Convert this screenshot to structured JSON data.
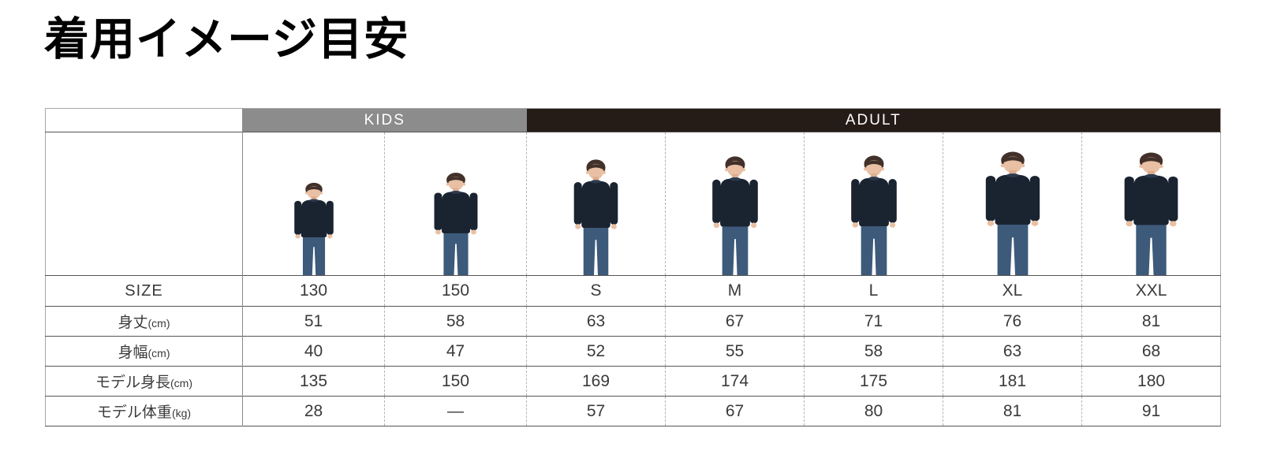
{
  "page": {
    "title": "着用イメージ目安"
  },
  "table": {
    "groups": [
      {
        "label": "KIDS",
        "span": 2
      },
      {
        "label": "ADULT",
        "span": 5
      }
    ],
    "size_row": {
      "label": "SIZE",
      "values": [
        "130",
        "150",
        "S",
        "M",
        "L",
        "XL",
        "XXL"
      ]
    },
    "spec_rows": [
      {
        "label": "身丈",
        "unit": "(cm)",
        "values": [
          "51",
          "58",
          "63",
          "67",
          "71",
          "76",
          "81"
        ]
      },
      {
        "label": "身幅",
        "unit": "(cm)",
        "values": [
          "40",
          "47",
          "52",
          "55",
          "58",
          "63",
          "68"
        ]
      },
      {
        "label": "モデル身長",
        "unit": "(cm)",
        "values": [
          "135",
          "150",
          "169",
          "174",
          "175",
          "181",
          "180"
        ]
      },
      {
        "label": "モデル体重",
        "unit": "(kg)",
        "values": [
          "28",
          "―",
          "57",
          "67",
          "80",
          "81",
          "91"
        ]
      }
    ],
    "models": [
      {
        "size": "130",
        "group": "KIDS",
        "height_cm": 135
      },
      {
        "size": "150",
        "group": "KIDS",
        "height_cm": 150
      },
      {
        "size": "S",
        "group": "ADULT",
        "height_cm": 169
      },
      {
        "size": "M",
        "group": "ADULT",
        "height_cm": 174
      },
      {
        "size": "L",
        "group": "ADULT",
        "height_cm": 175
      },
      {
        "size": "XL",
        "group": "ADULT",
        "height_cm": 181
      },
      {
        "size": "XXL",
        "group": "ADULT",
        "height_cm": 180
      }
    ]
  },
  "colors": {
    "kids_header_bg": "#8c8c8c",
    "adult_header_bg": "#251b17",
    "header_text": "#ffffff",
    "body_text": "#3a3a3a",
    "sweatshirt_navy": "#1a2330",
    "jeans_blue": "#3d5a7a",
    "skin": "#e9c0a3",
    "hair": "#42302a"
  }
}
